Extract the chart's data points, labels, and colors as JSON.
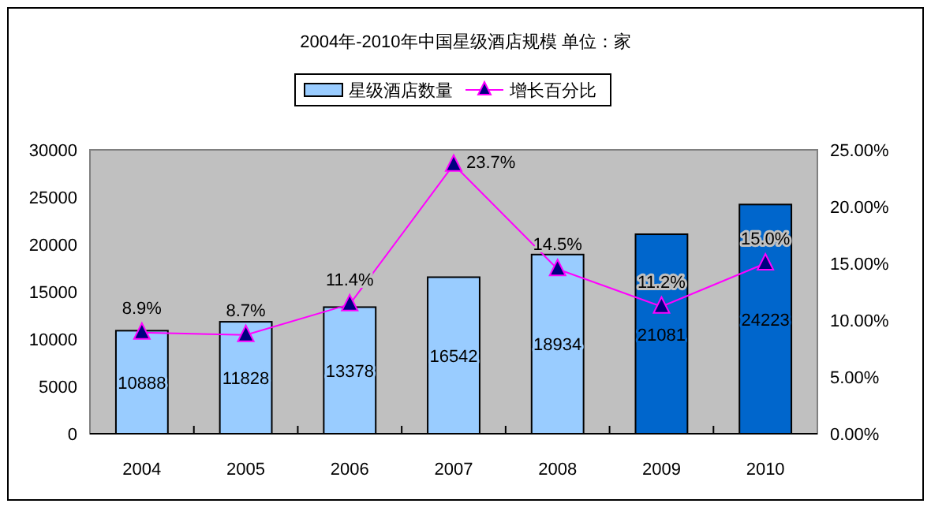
{
  "chart_data": {
    "type": "bar",
    "title": "2004年-2010年中国星级酒店规模 单位：家",
    "categories": [
      "2004",
      "2005",
      "2006",
      "2007",
      "2008",
      "2009",
      "2010"
    ],
    "series": [
      {
        "name": "星级酒店数量",
        "color": "#99ccff",
        "colors": [
          "#99ccff",
          "#99ccff",
          "#99ccff",
          "#99ccff",
          "#99ccff",
          "#0066cc",
          "#0066cc"
        ],
        "values": [
          10888,
          11828,
          13378,
          16542,
          18934,
          21081,
          24223
        ],
        "value_labels": [
          "10888",
          "11828",
          "13378",
          "16542",
          "18934",
          "21081",
          "24223"
        ]
      },
      {
        "name": "增长百分比",
        "type": "line",
        "axis": "y2",
        "color": "#ff00ff",
        "values": [
          8.9,
          8.7,
          11.4,
          23.7,
          14.5,
          11.2,
          15.0
        ],
        "value_labels": [
          "8.9%",
          "8.7%",
          "11.4%",
          "23.7%",
          "14.5%",
          "11.2%",
          "15.0%"
        ]
      }
    ],
    "ylim": [
      0,
      30000
    ],
    "yticks": [
      0,
      5000,
      10000,
      15000,
      20000,
      25000,
      30000
    ],
    "y2lim": [
      0,
      25
    ],
    "y2ticks": [
      {
        "value": 0,
        "label": "0.00%"
      },
      {
        "value": 5,
        "label": "5.00%"
      },
      {
        "value": 10,
        "label": "10.00%"
      },
      {
        "value": 15,
        "label": "15.00%"
      },
      {
        "value": 20,
        "label": "20.00%"
      },
      {
        "value": 25,
        "label": "25.00%"
      }
    ],
    "marker": "triangle",
    "line_style": "solid",
    "legend": "top",
    "grid": false
  }
}
